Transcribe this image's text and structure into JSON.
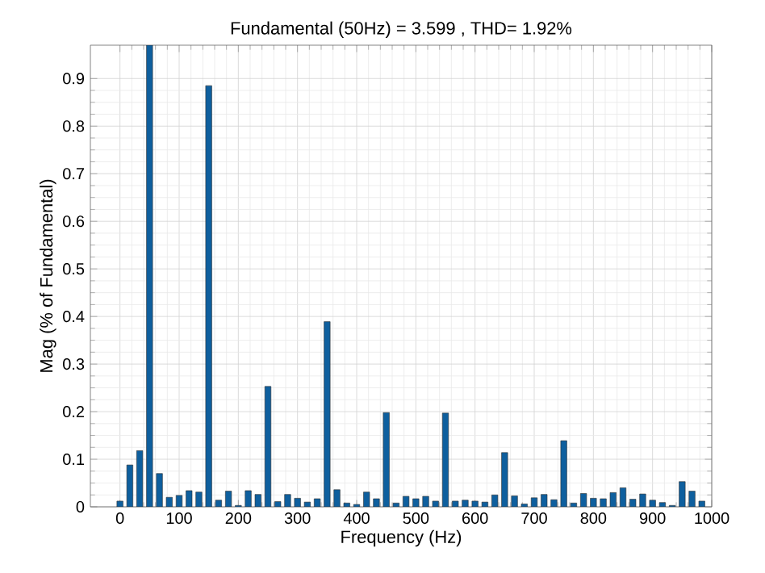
{
  "chart_data": {
    "type": "bar",
    "title": "Fundamental (50Hz) = 3.599 , THD= 1.92%",
    "xlabel": "Frequency (Hz)",
    "ylabel": "Mag (% of Fundamental)",
    "x": [
      0,
      16.67,
      33.33,
      50,
      66.67,
      83.33,
      100,
      116.67,
      133.33,
      150,
      166.67,
      183.33,
      200,
      216.67,
      233.33,
      250,
      266.67,
      283.33,
      300,
      316.67,
      333.33,
      350,
      366.67,
      383.33,
      400,
      416.67,
      433.33,
      450,
      466.67,
      483.33,
      500,
      516.67,
      533.33,
      550,
      566.67,
      583.33,
      600,
      616.67,
      633.33,
      650,
      666.67,
      683.33,
      700,
      716.67,
      733.33,
      750,
      766.67,
      783.33,
      800,
      816.67,
      833.33,
      850,
      866.67,
      883.33,
      900,
      916.67,
      933.33,
      950,
      966.67,
      983.33
    ],
    "values": [
      0.012,
      0.088,
      0.118,
      0.97,
      0.07,
      0.02,
      0.024,
      0.034,
      0.031,
      0.885,
      0.014,
      0.033,
      0.003,
      0.034,
      0.026,
      0.253,
      0.011,
      0.026,
      0.018,
      0.01,
      0.017,
      0.389,
      0.036,
      0.008,
      0.005,
      0.031,
      0.017,
      0.198,
      0.008,
      0.022,
      0.017,
      0.022,
      0.012,
      0.197,
      0.012,
      0.014,
      0.012,
      0.01,
      0.025,
      0.114,
      0.023,
      0.006,
      0.019,
      0.026,
      0.015,
      0.139,
      0.008,
      0.028,
      0.018,
      0.017,
      0.03,
      0.04,
      0.016,
      0.027,
      0.014,
      0.009,
      0.003,
      0.053,
      0.033,
      0.012
    ],
    "color": "#0e5f9e",
    "xlim": [
      -50,
      1000
    ],
    "xticks": [
      0,
      100,
      200,
      300,
      400,
      500,
      600,
      700,
      800,
      900,
      1000
    ],
    "ylim": [
      0,
      0.97
    ],
    "yticks": [
      0,
      0.1,
      0.2,
      0.3,
      0.4,
      0.5,
      0.6,
      0.7,
      0.8,
      0.9
    ],
    "grid": true
  }
}
